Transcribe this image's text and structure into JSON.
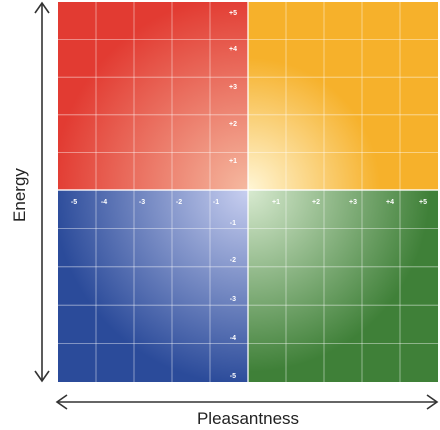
{
  "axes": {
    "x_title": "Pleasantness",
    "y_title": "Energy",
    "x_ticks_negative": [
      "-5",
      "-4",
      "-3",
      "-2",
      "-1"
    ],
    "x_ticks_positive": [
      "+1",
      "+2",
      "+3",
      "+4",
      "+5"
    ],
    "y_ticks_positive": [
      "+5",
      "+4",
      "+3",
      "+2",
      "+1"
    ],
    "y_ticks_negative": [
      "-1",
      "-2",
      "-3",
      "-4",
      "-5"
    ]
  },
  "quadrants": {
    "top_left": {
      "color": "#e23b32",
      "center_color": "#f5b9a0"
    },
    "top_right": {
      "color": "#f6b12b",
      "center_color": "#fff6d6"
    },
    "bottom_left": {
      "color": "#2b4b9a",
      "center_color": "#c8cff0"
    },
    "bottom_right": {
      "color": "#3f8038",
      "center_color": "#d8ead0"
    }
  },
  "grid_line_color": "#ffffff",
  "arrow_color": "#333333"
}
